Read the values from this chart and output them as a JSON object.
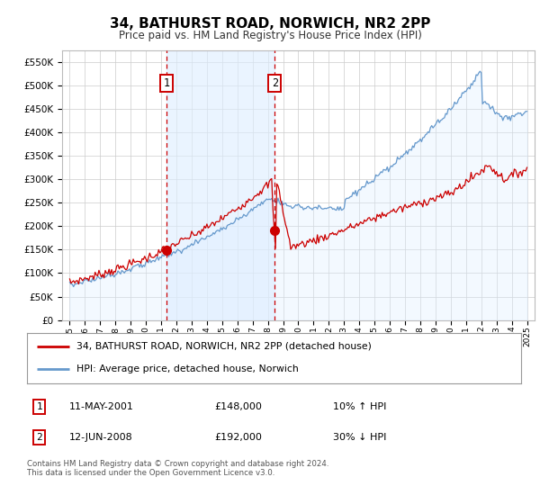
{
  "title": "34, BATHURST ROAD, NORWICH, NR2 2PP",
  "subtitle": "Price paid vs. HM Land Registry's House Price Index (HPI)",
  "legend_house": "34, BATHURST ROAD, NORWICH, NR2 2PP (detached house)",
  "legend_hpi": "HPI: Average price, detached house, Norwich",
  "purchase1_date": "11-MAY-2001",
  "purchase1_price": 148000,
  "purchase1_label": "10% ↑ HPI",
  "purchase1_x": 2001.37,
  "purchase2_date": "12-JUN-2008",
  "purchase2_price": 192000,
  "purchase2_label": "30% ↓ HPI",
  "purchase2_x": 2008.45,
  "ylim": [
    0,
    575000
  ],
  "xlim": [
    1994.5,
    2025.5
  ],
  "yticks": [
    0,
    50000,
    100000,
    150000,
    200000,
    250000,
    300000,
    350000,
    400000,
    450000,
    500000,
    550000
  ],
  "house_color": "#cc0000",
  "hpi_color": "#6699cc",
  "hpi_fill_color": "#ddeeff",
  "shade_color": "#ddeeff",
  "marker_color": "#cc0000",
  "dashed_color": "#cc0000",
  "box_color": "#cc0000",
  "background_color": "#ffffff",
  "grid_color": "#cccccc",
  "footer": "Contains HM Land Registry data © Crown copyright and database right 2024.\nThis data is licensed under the Open Government Licence v3.0."
}
